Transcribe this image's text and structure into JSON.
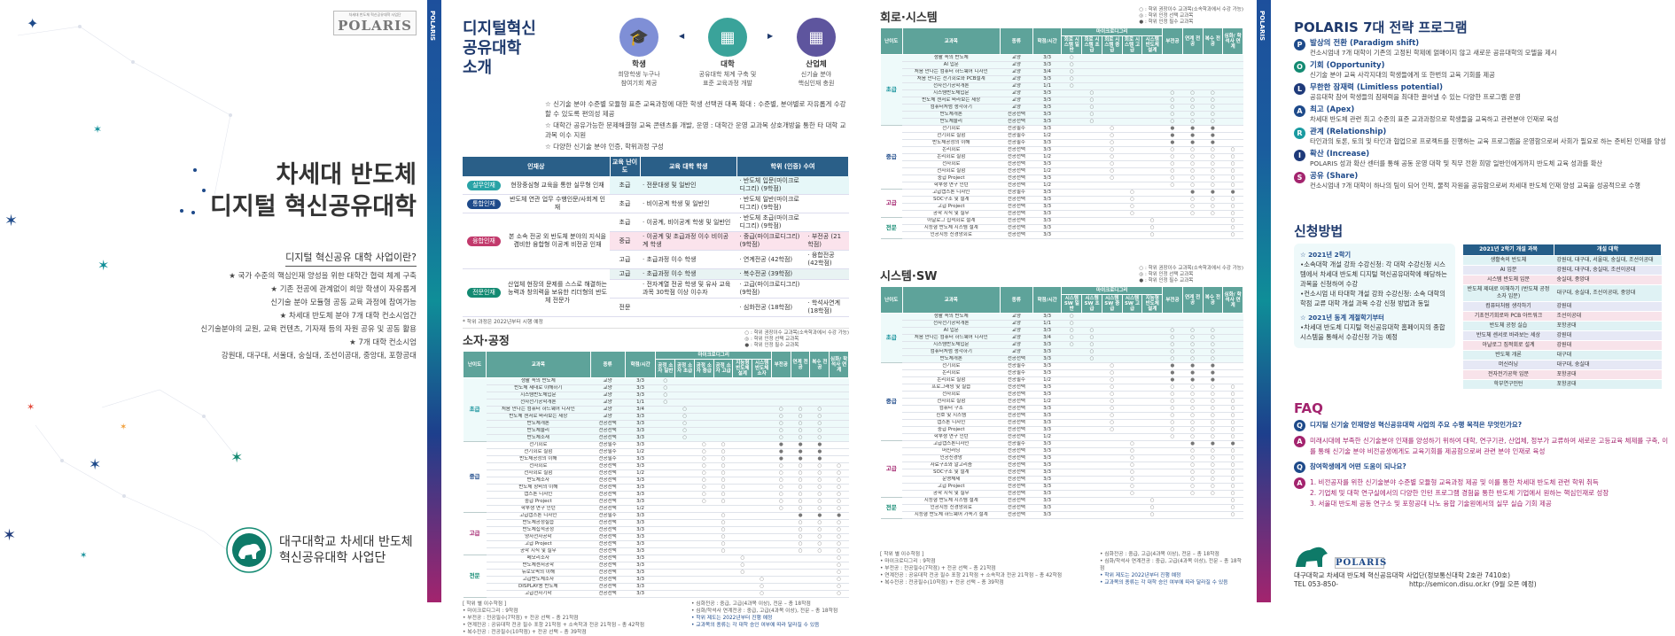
{
  "colors": {
    "navy": "#1e4a8a",
    "teal": "#0f8e98",
    "magenta": "#a3246e",
    "table_header": "#5ea39a"
  },
  "cover": {
    "logo_small": "차세대 반도체 혁신공유대학 사업단",
    "logo_text": "POLARIS",
    "title_line1": "차세대 반도체",
    "title_line2": "디지털 혁신공유대학",
    "subtitle": "디지털 혁신공유 대학 사업이란?",
    "bullets": [
      "★ 국가 수준의 핵심인재 양성을 위한 대학간 협력 체계 구축",
      "★ 기존 전공에 관계없이 희망 학생이 자유롭게",
      "신기술 분야 모듈형 공동 교육 과정에 참여가능",
      "★ 차세대 반도체 분야 7개 대학 컨소시엄간",
      "신기술분야의 교원, 교육 컨텐츠, 기자재 등의 자원 공유 및 공동 활용",
      "★ 7개 대학 컨소시엄",
      "강원대, 대구대, 서울대, 숭실대, 조선이공대, 중앙대, 포항공대"
    ],
    "org_line1": "대구대학교 차세대 반도체",
    "org_line2": "혁신공유대학 사업단"
  },
  "strip_label": "POLARIS",
  "intro": {
    "title": [
      "디지털혁신",
      "공유대학",
      "소개"
    ],
    "nodes": [
      {
        "name": "학생",
        "desc1": "희망학생 누구나",
        "desc2": "참여기회 제공",
        "color": "#7f8fd6",
        "icon": "graduate-icon"
      },
      {
        "name": "대학",
        "desc1": "공유대학 체계 구축 및",
        "desc2": "표준 교육과정 개발",
        "color": "#3aa39a",
        "icon": "university-building-icon"
      },
      {
        "name": "산업체",
        "desc1": "신기술 분야",
        "desc2": "핵심인재 충원",
        "color": "#5e559e",
        "icon": "office-building-icon"
      }
    ],
    "points": [
      "☆ 신기술 분야 수준별 모듈형 표준 교육과정에 대한 학생 선택권 대폭 확대 : 수준별, 분야별로 자유롭게 수강할 수 있도록 편의성 제공",
      "☆ 대학간 공유가능한 문제해결형 교육 콘텐츠를 개발, 운영 : 대학간 운영 교과목 상호개방을 통한 타 대학 교과목 이수 지원",
      "☆ 다양한 신기술 분야 인증, 학위과정 구성"
    ]
  },
  "program_table": {
    "headers": [
      "인재상",
      "교육 난이도",
      "교육 대학 학생",
      "학위 (인증) 수여"
    ],
    "groups": [
      {
        "badge": "실무인재",
        "color": "#29a3a6",
        "desc": "현장중심형 교육을 통한 실무형 인재",
        "rows": [
          [
            "초급",
            "· 전문대생 및 일반인",
            "· 반도체 입문(마이크로디그리) (9학점)",
            ""
          ]
        ]
      },
      {
        "badge": "통합인재",
        "color": "#1e4a8a",
        "desc": "반도체 연관 업무 수행인문/사회계 인재",
        "rows": [
          [
            "초급",
            "· 비이공계 학생 및 일반인",
            "· 반도체 일반(마이크로디그리) (9학점)",
            ""
          ]
        ]
      },
      {
        "badge": "융합인재",
        "color": "#c23a6c",
        "desc": "본 소속 전공 외 반도체 분야의 지식을 겸비한 융합형 이공계 비전공 인재",
        "rows": [
          [
            "초급",
            "· 이공계, 비이공계 학생 및 일반인",
            "· 반도체 초급(마이크로디그리) (9학점)",
            ""
          ],
          [
            "중급",
            "· 이공계 및 초급과정 이수 비이공계 학생",
            "· 중급(마이크로디그리) (9학점)",
            "· 부전공 (21학점)"
          ],
          [
            "고급",
            "· 초급과정 이수 학생",
            "· 연계전공 (42학점)",
            "· 융합전공 (42학점)"
          ]
        ]
      },
      {
        "badge": "전문인재",
        "color": "#138a72",
        "desc": "산업체 현장의 문제를 스스로 해결하는 능력과 창의력을 보유한 리더형의 반도체 전문가",
        "rows": [
          [
            "고급",
            "· 초급과정 이수 학생",
            "· 복수전공 (39학점)",
            ""
          ],
          [
            "",
            "· 전자계열 전공 학생 및 유사 교육과목 30학점 이상 이수자",
            "· 고급(마이크로디그리) (9학점)",
            ""
          ],
          [
            "전문",
            "",
            "· 심화전공 (18학점)",
            "· 학석사연계 (18학점)"
          ]
        ]
      }
    ],
    "note": "* 학위 과정은 2022년부터 시행 예정"
  },
  "legend": [
    "○ : 학위 권장이수 교과목(소속학과에서 수강 가능)",
    "◎ : 학위 인정 선택 교과목",
    "● : 학위 인정 필수 교과목"
  ],
  "course_headers": {
    "level": "난이도",
    "course": "교과목",
    "type": "종류",
    "credit": "학점/시간",
    "micro": "마이크로디그리",
    "minor": "부전공",
    "linked": "연계 전공",
    "double": "복수 전공",
    "advanced": "심화/ 학석사 연계"
  },
  "course_tables": [
    {
      "title": "소자·공정",
      "micro_cols": [
        "공정 소자 일반",
        "공정 소자 초급",
        "공정 소자 중급",
        "공정 소자 고급",
        "지능형 반도체 설계",
        "시스템 반도체 소자"
      ],
      "levels": [
        {
          "name": "초급",
          "color": "#0f8e98",
          "rows": [
            [
              "생활 속의 반도체",
              "교양",
              "3/3",
              "o---------"
            ],
            [
              "반도체 제대로 이해하기",
              "교양",
              "3/3",
              "o---------"
            ],
            [
              "시스템반도체입문",
              "교양",
              "3/3",
              "o---------"
            ],
            [
              "전자전기공학개론",
              "교양",
              "1/1",
              "o---------"
            ],
            [
              "처음 만나는 컴퓨터 하드웨어 디자인",
              "교양",
              "3/4",
              "-o----ooo-"
            ],
            [
              "반도체 센서로 바라보는 세상",
              "교양",
              "3/3",
              "-o----ooo-"
            ],
            [
              "반도체개론",
              "전공선택",
              "3/3",
              "-o----ooo-"
            ],
            [
              "반도체물리",
              "전공선택",
              "3/3",
              "-o----ooo-"
            ],
            [
              "반도체소재",
              "전공선택",
              "3/3",
              "-o----ooo-"
            ]
          ]
        },
        {
          "name": "중급",
          "color": "#1e4a8a",
          "rows": [
            [
              "전기회로",
              "전공필수",
              "3/3",
              "--oo--***-"
            ],
            [
              "전기회로 실험",
              "전공필수",
              "1/2",
              "--oo--***-"
            ],
            [
              "반도체공정의 이해",
              "전공필수",
              "3/3",
              "--oo--***-"
            ],
            [
              "전자회로",
              "전공선택",
              "3/3",
              "--oo--oooo"
            ],
            [
              "전자회로 실험",
              "전공선택",
              "1/2",
              "--oo--oooo"
            ],
            [
              "반도체소자",
              "전공선택",
              "3/3",
              "--oo--oooo"
            ],
            [
              "반도체 장비의 이해",
              "전공선택",
              "3/3",
              "--oo--oooo"
            ],
            [
              "캡스톤 디자인",
              "전공선택",
              "3/3",
              "--oo--oooo"
            ],
            [
              "중급 Project",
              "전공선택",
              "3/3",
              "--oo--oooo"
            ],
            [
              "학부생 연구 인턴",
              "전공선택",
              "1/2",
              "------oooo"
            ]
          ]
        },
        {
          "name": "고급",
          "color": "#a3246e",
          "rows": [
            [
              "고급캡스톤 디자인",
              "전공필수",
              "3/3",
              "---o---***"
            ],
            [
              "반도체공정실습",
              "전공선택",
              "3/3",
              "---o---ooo"
            ],
            [
              "반도체집적공정",
              "전공선택",
              "3/3",
              "---o---ooo"
            ],
            [
              "양자전자공학",
              "전공선택",
              "3/3",
              "---o---ooo"
            ],
            [
              "고급 Project",
              "전공선택",
              "3/3",
              "---o---ooo"
            ],
            [
              "공학 지식 및 실무",
              "전공선택",
              "3/3",
              "---o---ooo"
            ]
          ]
        },
        {
          "name": "전문",
          "color": "#138a72",
          "rows": [
            [
              "메모리소자",
              "전공선택",
              "3/3",
              "----o----o"
            ],
            [
              "반도체센서공학",
              "전공선택",
              "3/3",
              "----o----o"
            ],
            [
              "뉴로모픽의 이해",
              "전공선택",
              "3/3",
              "----o----o"
            ],
            [
              "고급반도체소자",
              "전공선택",
              "3/3",
              "-----o---o"
            ],
            [
              "DISPLAY용 반도체",
              "전공선택",
              "3/3",
              "-----o---o"
            ],
            [
              "고급전자기학",
              "전공선택",
              "3/3",
              "-----o---o"
            ]
          ]
        }
      ]
    },
    {
      "title": "회로·시스템",
      "micro_cols": [
        "회로 시스템 일반",
        "회로 시스템 초급",
        "회로 시스템 중급",
        "회로 시스템 고급",
        "시스템 반도체 설계"
      ],
      "levels": [
        {
          "name": "초급",
          "color": "#0f8e98",
          "rows": [
            [
              "생활 속의 반도체",
              "교양",
              "3/3",
              "o--------"
            ],
            [
              "AI 입문",
              "교양",
              "3/3",
              "o--------"
            ],
            [
              "처음 만나는 컴퓨터 하드웨어 디자인",
              "교양",
              "3/4",
              "o--------"
            ],
            [
              "처음 만나는 전기회로와 PCB설계",
              "교양",
              "3/3",
              "o--------"
            ],
            [
              "전자전기공학개론",
              "교양",
              "1/1",
              "o--------"
            ],
            [
              "시스템반도체입문",
              "교양",
              "3/3",
              "-o---ooo-"
            ],
            [
              "반도체 센서로 바라보는 세상",
              "교양",
              "3/3",
              "-o---ooo-"
            ],
            [
              "컴퓨터처럼 생각하기",
              "교양",
              "3/3",
              "-o---ooo-"
            ],
            [
              "반도체개론",
              "전공선택",
              "3/3",
              "-o---ooo-"
            ],
            [
              "반도체물리",
              "전공선택",
              "3/3",
              "-o---ooo-"
            ]
          ]
        },
        {
          "name": "중급",
          "color": "#1e4a8a",
          "rows": [
            [
              "전기회로",
              "전공필수",
              "3/3",
              "--o--***-"
            ],
            [
              "전기회로 실험",
              "전공필수",
              "1/2",
              "--o--***-"
            ],
            [
              "반도체공정의 이해",
              "전공필수",
              "3/3",
              "--o--***-"
            ],
            [
              "논리회로",
              "전공선택",
              "3/3",
              "--o--oooo"
            ],
            [
              "논리회로 실험",
              "전공선택",
              "1/2",
              "--o--oooo"
            ],
            [
              "전자회로",
              "전공선택",
              "3/3",
              "--o--oooo"
            ],
            [
              "전자회로 실험",
              "전공선택",
              "1/2",
              "--o--oooo"
            ],
            [
              "중급 Project",
              "전공선택",
              "3/3",
              "--o--oooo"
            ],
            [
              "학부생 연구 인턴",
              "전공선택",
              "1/2",
              "-----oooo"
            ]
          ]
        },
        {
          "name": "고급",
          "color": "#a3246e",
          "rows": [
            [
              "고급캡스톤 디자인",
              "전공필수",
              "3/3",
              "---o--***"
            ],
            [
              "SOC구조 및 설계",
              "전공선택",
              "3/3",
              "---o--ooo"
            ],
            [
              "고급 Project",
              "전공선택",
              "3/3",
              "---o--ooo"
            ],
            [
              "공학 지식 및 실무",
              "전공선택",
              "3/3",
              "---o--ooo"
            ]
          ]
        },
        {
          "name": "전문",
          "color": "#138a72",
          "rows": [
            [
              "아날로그 집적회로 설계",
              "전공선택",
              "3/3",
              "----o---o"
            ],
            [
              "지능형 반도체 시스템 설계",
              "전공선택",
              "3/3",
              "----o---o"
            ],
            [
              "인공지능 신경망회로",
              "전공선택",
              "3/3",
              "----o---o"
            ]
          ]
        }
      ]
    },
    {
      "title": "시스템·SW",
      "micro_cols": [
        "시스템 SW 일반",
        "시스템 SW 초급",
        "시스템 SW 중급",
        "시스템 SW 고급",
        "지능형 반도체 설계"
      ],
      "levels": [
        {
          "name": "초급",
          "color": "#0f8e98",
          "rows": [
            [
              "생활 속의 반도체",
              "교양",
              "3/3",
              "o--------"
            ],
            [
              "전자전기공학개론",
              "교양",
              "1/1",
              "o--------"
            ],
            [
              "AI 입문",
              "교양",
              "3/3",
              "oo---ooo-"
            ],
            [
              "처음 만나는 컴퓨터 하드웨어 디자인",
              "교양",
              "3/4",
              "oo---ooo-"
            ],
            [
              "시스템반도체입문",
              "교양",
              "3/3",
              "oo---ooo-"
            ],
            [
              "컴퓨터처럼 생각하기",
              "교양",
              "3/3",
              "-o---ooo-"
            ],
            [
              "반도체개론",
              "전공선택",
              "3/3",
              "-o---ooo-"
            ]
          ]
        },
        {
          "name": "중급",
          "color": "#1e4a8a",
          "rows": [
            [
              "전기회로",
              "전공필수",
              "3/3",
              "--o--***-"
            ],
            [
              "논리회로",
              "전공필수",
              "3/3",
              "--o--***-"
            ],
            [
              "논리회로 실험",
              "전공필수",
              "1/2",
              "--o--***-"
            ],
            [
              "프로그래밍 및 실습",
              "전공선택",
              "3/3",
              "--o--oooo"
            ],
            [
              "전자회로",
              "전공선택",
              "3/3",
              "--o--oooo"
            ],
            [
              "전자회로 실험",
              "전공선택",
              "1/2",
              "--o--oooo"
            ],
            [
              "컴퓨터 구조",
              "전공선택",
              "3/3",
              "--o--oooo"
            ],
            [
              "신호 및 시스템",
              "전공선택",
              "3/3",
              "--o--oooo"
            ],
            [
              "캡스톤 디자인",
              "전공선택",
              "3/3",
              "--o--oooo"
            ],
            [
              "중급 Project",
              "전공선택",
              "3/3",
              "--o--oooo"
            ],
            [
              "학부생 연구 인턴",
              "전공선택",
              "1/2",
              "-----oooo"
            ]
          ]
        },
        {
          "name": "고급",
          "color": "#a3246e",
          "rows": [
            [
              "고급캡스톤디자인",
              "전공필수",
              "3/3",
              "---o--***"
            ],
            [
              "머신러닝",
              "전공선택",
              "3/3",
              "---o--ooo"
            ],
            [
              "인공신경망",
              "전공선택",
              "3/3",
              "---o--ooo"
            ],
            [
              "자료구조와 알고리즘",
              "전공선택",
              "3/3",
              "---o--ooo"
            ],
            [
              "SOC구조 및 설계",
              "전공선택",
              "3/3",
              "---o--ooo"
            ],
            [
              "운영체제",
              "전공선택",
              "3/3",
              "---o--ooo"
            ],
            [
              "고급 Project",
              "전공선택",
              "3/3",
              "---o--ooo"
            ],
            [
              "공학 지식 및 실무",
              "전공선택",
              "3/3",
              "---o--ooo"
            ]
          ]
        },
        {
          "name": "전문",
          "color": "#138a72",
          "rows": [
            [
              "지능형 반도체 시스템 설계",
              "전공선택",
              "3/3",
              "----o---o"
            ],
            [
              "인공지능 신경망회로",
              "전공선택",
              "3/3",
              "----o---o"
            ],
            [
              "지능형 반도체 하드웨어 가속기 설계",
              "전공선택",
              "3/3",
              "----o---o"
            ]
          ]
        }
      ]
    }
  ],
  "footnotes_left": [
    "[ 학위 별 이수학점 ]",
    "• 마이크로디그리 : 9학점",
    "• 부전공 : 전공필수(7학점) + 전공 선택 – 총 21학점",
    "• 연계전공 : 공유대학 전공 필수 포함 21학점 + 소속학과 전공 21학점 – 총 42학점",
    "• 복수전공 : 전공필수(10학점) + 전공 선택 – 총 39학점"
  ],
  "footnotes_right": [
    "• 심화전공 : 중급, 고급(4과목 이상), 전문 – 총 18학점",
    "• 심화/학석사 연계전공 : 중급, 고급(4과목 이상), 전문 – 총 18학점",
    "• 학위 제도는 2022년부터 진행 예정",
    "• 교과목의 종류는 각 대학 승인 여부에 따라 달라질 수 있음"
  ],
  "strategy": {
    "title": "POLARIS 7대 전략 프로그램",
    "items": [
      {
        "letter": "P",
        "color": "#1e4a8a",
        "title": "발상의 전환 (Paradigm shift)",
        "desc": "컨소시엄내 7개 대학이 기존의 고정된 학제에 얽매이지 않고 새로운 공유대학의 모델을 제시"
      },
      {
        "letter": "O",
        "color": "#138a72",
        "title": "기회 (Opportunity)",
        "desc": "신기술 분야 교육 사각지대의 학생들에게 또 한번의 교육 기회를 제공"
      },
      {
        "letter": "L",
        "color": "#1e3a7a",
        "title": "무한한 잠재력 (Limitless potential)",
        "desc": "공유대학 참여 학생들의 잠재력을 최대한 끌어낼 수 있는 다양한 프로그램 운영"
      },
      {
        "letter": "A",
        "color": "#1e4a8a",
        "title": "최고 (Apex)",
        "desc": "차세대 반도체 관련 최고 수준의 표준 교과과정으로 학생들을 교육하고 관련분야 인재로 육성"
      },
      {
        "letter": "R",
        "color": "#1a9aa0",
        "title": "관계 (Relationship)",
        "desc": "타인과의 토론, 토의 및 타인과 협업으로 프로젝트를 진행하는 교육 프로그램을 운영함으로써 사회가 필요로 하는 준비된 인재를 양성"
      },
      {
        "letter": "I",
        "color": "#1e3a7a",
        "title": "확산 (Increase)",
        "desc": "POLARIS 성과 확산 센터를 통해 공동 운영 대학 및 직무 전환 희망 일반인에게까지 반도체 교육 성과를 확산"
      },
      {
        "letter": "S",
        "color": "#a3246e",
        "title": "공유 (Share)",
        "desc": "컨소시엄내 7개 대학이 하나의 팀이 되어 인적, 물적 자원을 공유함으로써 차세대 반도체 인재 양성 교육을 성공적으로 수행"
      }
    ]
  },
  "apply": {
    "title": "신청방법",
    "h1": "☆ 2021년 2학기",
    "p1": [
      "•소속대학 개설 강좌 수강신청: 각 대학 수강신청 시스템에서 차세대 반도체 디지털 혁신공유대학에 해당하는 과목을 신청하여 수강",
      "•컨소시엄 내 타대학 개설 강좌 수강신청: 소속 대학의 학점 교류 대학 개설 과목 수강 신청 방법과 동일"
    ],
    "h2": "☆ 2021년 동계 계절학기부터",
    "p2": [
      "•차세대 반도체 디지털 혁신공유대학 홈페이지의 종합시스템을 통해서 수강신청 가능 예정"
    ],
    "table_headers": [
      "2021년 2학기 개설 과목",
      "개설 대학"
    ],
    "table_rows": [
      [
        "생활속의 반도체",
        "강원대, 대구대, 서울대, 숭실대, 조선이공대"
      ],
      [
        "AI 입문",
        "강원대, 대구대, 숭실대, 조선이공대"
      ],
      [
        "시스템 반도체 입문",
        "숭실대, 중앙대"
      ],
      [
        "반도체 제대로 이해하기 (반도체 공정 소자 입문)",
        "대구대, 숭실대, 조선이공대, 중앙대"
      ],
      [
        "컴퓨터처럼 생각하기",
        "강원대"
      ],
      [
        "기초전기회로와 PCB 아트워크",
        "조선이공대"
      ],
      [
        "반도체 공정 실습",
        "포항공대"
      ],
      [
        "반도체 센서로 바라보는 세상",
        "강원대"
      ],
      [
        "아날로그 집적회로 설계",
        "강원대"
      ],
      [
        "반도체 개론",
        "대구대"
      ],
      [
        "머신러닝",
        "대구대, 숭실대"
      ],
      [
        "전자전기공학 입문",
        "포항공대"
      ],
      [
        "학부연구인턴",
        "포항공대"
      ]
    ]
  },
  "faq": {
    "title": "FAQ",
    "items": [
      {
        "q": "디지털 신기술 인재양성 혁신공유대학 사업의 주요 수행 목적은 무엇인가요?",
        "a": [
          "미래시대에 부족한 신기술분야 인재를 양성하기 위하여 대학, 연구기관, 산업체, 정부가 교류하여 새로운 고등교육 체제를 구축, 이를 통해 신기술 분야 비전공생에게도 교육기회를 제공함으로써 관련 분야 인재로 육성"
        ]
      },
      {
        "q": "참여학생에게 어떤 도움이 되나요?",
        "a": [
          "1. 비전공자를 위한 신기술분야 수준별 모듈형 교육과정 제공 및 이를 통한 차세대 반도체 관련 학위 취득",
          "2. 기업체 및 대학 연구실에서의 다양한 인턴 프로그램 경험을 통한 반도체 기업에서 원하는 핵심인재로 성장",
          "3. 서울대 반도체 공동 연구소 및 포항공대 나노 융합 기술원에서의 실무 실습 기회 제공"
        ]
      }
    ]
  },
  "footer": {
    "logo_text": "POLARIS",
    "address": "대구대학교 차세대 반도체 혁신공유대학 사업단(정보통신대학 2호관 7410호)",
    "tel": "TEL  053-850-",
    "url": "http://semicon.disu.or.kr (9월 오픈 예정)"
  }
}
